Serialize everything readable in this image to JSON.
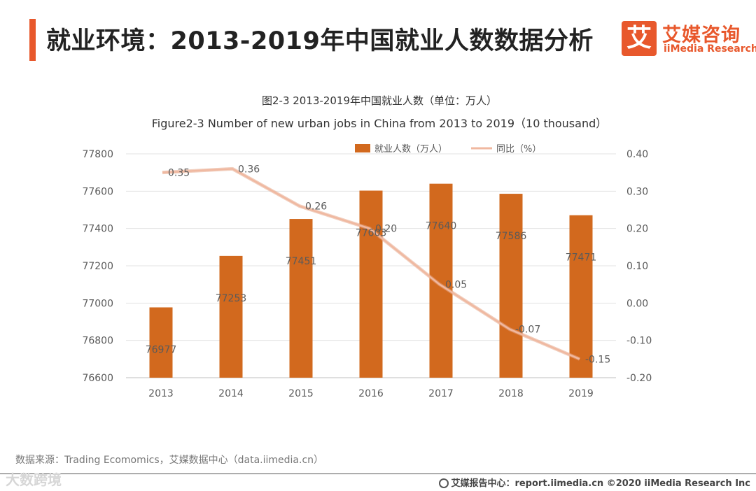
{
  "header": {
    "title": "就业环境：2013-2019年中国就业人数数据分析"
  },
  "logo": {
    "mark": "艾",
    "name_cn": "艾媒咨询",
    "name_en": "iiMedia Research",
    "brand_color": "#e8582c"
  },
  "chart_data": {
    "type": "bar",
    "title": "图2-3 2013-2019年中国就业人数（单位：万人）",
    "subtitle": "Figure2-3 Number of new urban jobs in China from 2013 to 2019（10 thousand）",
    "categories": [
      "2013",
      "2014",
      "2015",
      "2016",
      "2017",
      "2018",
      "2019"
    ],
    "series": [
      {
        "name": "就业人数（万人）",
        "type": "bar",
        "axis": "left",
        "color": "#d2691e",
        "values": [
          76977,
          77253,
          77451,
          77603,
          77640,
          77586,
          77471
        ],
        "labels": [
          "76977",
          "77253",
          "77451",
          "77603",
          "77640",
          "77586",
          "77471"
        ]
      },
      {
        "name": "同比（%）",
        "type": "line",
        "axis": "right",
        "color": "#f0b8a0",
        "values": [
          0.35,
          0.36,
          0.26,
          0.2,
          0.05,
          -0.07,
          -0.15
        ],
        "labels": [
          "0.35",
          "0.36",
          "0.26",
          "0.20",
          "0.05",
          "-0.07",
          "-0.15"
        ]
      }
    ],
    "ylim": [
      76600,
      77800
    ],
    "yticks": [
      "76600",
      "76800",
      "77000",
      "77200",
      "77400",
      "77600",
      "77800"
    ],
    "y2lim": [
      -0.2,
      0.4
    ],
    "y2ticks": [
      "-0.20",
      "-0.10",
      "0.00",
      "0.10",
      "0.20",
      "0.30",
      "0.40"
    ],
    "grid": true,
    "legend_position": "top"
  },
  "footer": {
    "source": "数据来源：Trading Ecomomics，艾媒数据中心（data.iimedia.cn）",
    "watermark": "大数跨境",
    "copyright": "艾媒报告中心：report.iimedia.cn ©2020 iiMedia Research Inc"
  }
}
